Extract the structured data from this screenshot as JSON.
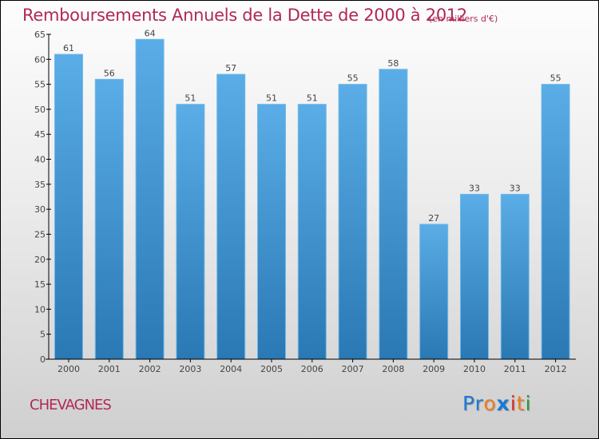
{
  "chart_data": {
    "type": "bar",
    "title": "Remboursements Annuels de la Dette de 2000 à 2012",
    "subtitle": "(en milliers d'€)",
    "xlabel": "",
    "ylabel": "",
    "categories": [
      "2000",
      "2001",
      "2002",
      "2003",
      "2004",
      "2005",
      "2006",
      "2007",
      "2008",
      "2009",
      "2010",
      "2011",
      "2012"
    ],
    "values": [
      61,
      56,
      64,
      51,
      57,
      51,
      51,
      55,
      58,
      27,
      33,
      33,
      55
    ],
    "ylim": [
      0,
      65
    ],
    "yticks": [
      0,
      5,
      10,
      15,
      20,
      25,
      30,
      35,
      40,
      45,
      50,
      55,
      60,
      65
    ],
    "grid": false,
    "legend": "none",
    "bar_color_top": "#5aade6",
    "bar_color_bottom": "#2a78b4"
  },
  "commune": "CHEVAGNES",
  "logo": {
    "letters": [
      {
        "ch": "P",
        "color": "#1a7ad4"
      },
      {
        "ch": "r",
        "color": "#1a7ad4"
      },
      {
        "ch": "o",
        "color": "#f07c1a"
      },
      {
        "ch": "x",
        "color": "#1a7ad4"
      },
      {
        "ch": "i",
        "color": "#e0261e"
      },
      {
        "ch": "t",
        "color": "#f07c1a"
      },
      {
        "ch": "i",
        "color": "#2a9a3a"
      }
    ]
  }
}
